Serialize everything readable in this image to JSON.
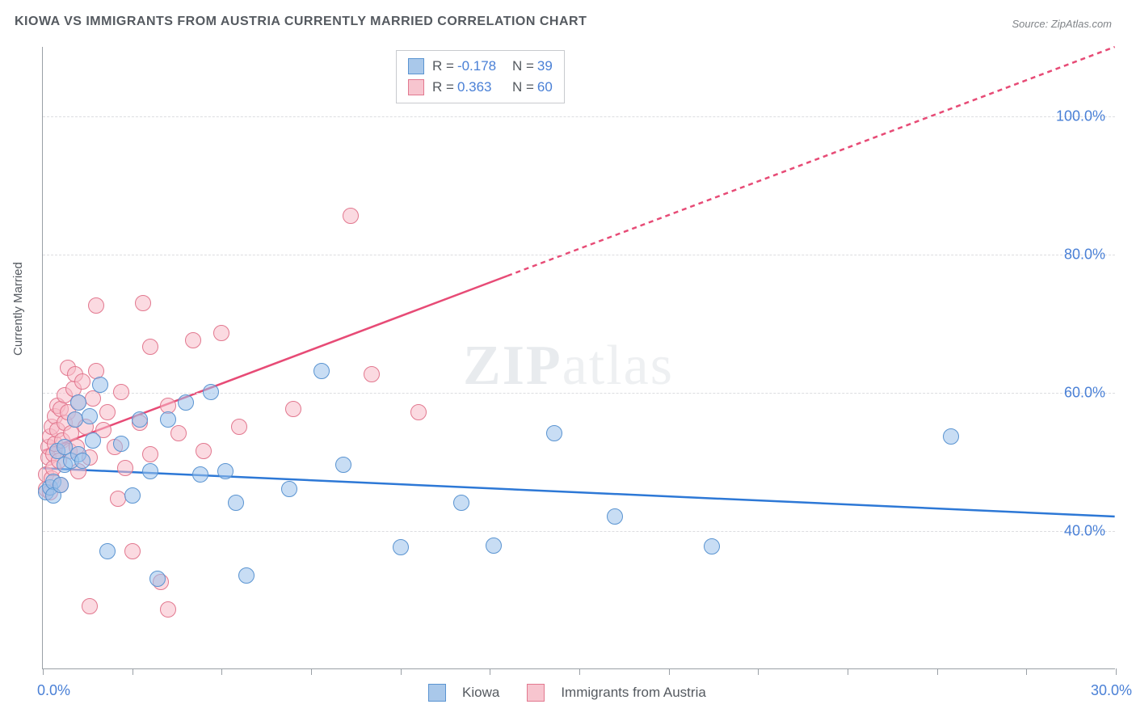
{
  "title": "KIOWA VS IMMIGRANTS FROM AUSTRIA CURRENTLY MARRIED CORRELATION CHART",
  "source": "Source: ZipAtlas.com",
  "y_axis_label": "Currently Married",
  "watermark_a": "ZIP",
  "watermark_b": "atlas",
  "chart": {
    "type": "scatter",
    "xlim": [
      0,
      30
    ],
    "ylim": [
      20,
      110
    ],
    "x_ticks": [
      0,
      2.5,
      5,
      7.5,
      10,
      12.5,
      15,
      17.5,
      20,
      22.5,
      25,
      27.5,
      30
    ],
    "y_gridlines": [
      40,
      60,
      80,
      100
    ],
    "y_tick_labels": [
      {
        "v": 40,
        "t": "40.0%"
      },
      {
        "v": 60,
        "t": "60.0%"
      },
      {
        "v": 80,
        "t": "80.0%"
      },
      {
        "v": 100,
        "t": "100.0%"
      }
    ],
    "x_tick_labels": [
      {
        "v": 0,
        "t": "0.0%"
      },
      {
        "v": 30,
        "t": "30.0%"
      }
    ],
    "background_color": "#ffffff",
    "grid_color": "#dcdde0",
    "axis_color": "#9aa0a6"
  },
  "series": [
    {
      "name": "Kiowa",
      "color_fill": "#a9c8ea",
      "color_stroke": "#5a94d1",
      "line_color": "#2d78d6",
      "R": "-0.178",
      "N": "39",
      "trend": {
        "x1": 0,
        "y1": 49.0,
        "x2": 30,
        "y2": 42.0
      },
      "points": [
        [
          0.1,
          45.5
        ],
        [
          0.2,
          46.2
        ],
        [
          0.3,
          47.0
        ],
        [
          0.3,
          45.0
        ],
        [
          0.4,
          51.5
        ],
        [
          0.5,
          46.5
        ],
        [
          0.6,
          49.5
        ],
        [
          0.6,
          52.0
        ],
        [
          0.8,
          50.0
        ],
        [
          0.9,
          56.0
        ],
        [
          1.0,
          51.0
        ],
        [
          1.0,
          58.5
        ],
        [
          1.1,
          50.0
        ],
        [
          1.3,
          56.5
        ],
        [
          1.4,
          53.0
        ],
        [
          1.6,
          61.0
        ],
        [
          1.8,
          37.0
        ],
        [
          2.2,
          52.5
        ],
        [
          2.5,
          45.0
        ],
        [
          2.7,
          56.0
        ],
        [
          3.0,
          48.5
        ],
        [
          3.2,
          33.0
        ],
        [
          3.5,
          56.0
        ],
        [
          4.0,
          58.5
        ],
        [
          4.4,
          48.0
        ],
        [
          4.7,
          60.0
        ],
        [
          5.1,
          48.5
        ],
        [
          5.4,
          44.0
        ],
        [
          5.7,
          33.5
        ],
        [
          6.9,
          46.0
        ],
        [
          7.8,
          63.0
        ],
        [
          8.4,
          49.5
        ],
        [
          10.0,
          37.5
        ],
        [
          11.7,
          44.0
        ],
        [
          12.6,
          37.8
        ],
        [
          14.3,
          54.0
        ],
        [
          16.0,
          42.0
        ],
        [
          18.7,
          37.7
        ],
        [
          25.4,
          53.5
        ]
      ]
    },
    {
      "name": "Immigrants from Austria",
      "color_fill": "#f7c5cf",
      "color_stroke": "#e2788f",
      "line_color": "#e74b76",
      "R": "0.363",
      "N": "60",
      "trend": {
        "x1": 0,
        "y1": 51.5,
        "x2": 30,
        "y2": 110.0
      },
      "trend_solid_until_x": 13.0,
      "points": [
        [
          0.1,
          46.0
        ],
        [
          0.1,
          48.0
        ],
        [
          0.15,
          50.5
        ],
        [
          0.15,
          52.0
        ],
        [
          0.2,
          45.5
        ],
        [
          0.2,
          53.5
        ],
        [
          0.25,
          55.0
        ],
        [
          0.25,
          47.5
        ],
        [
          0.3,
          51.0
        ],
        [
          0.3,
          49.0
        ],
        [
          0.35,
          56.5
        ],
        [
          0.35,
          52.5
        ],
        [
          0.4,
          54.5
        ],
        [
          0.4,
          58.0
        ],
        [
          0.45,
          50.0
        ],
        [
          0.5,
          57.5
        ],
        [
          0.5,
          46.5
        ],
        [
          0.55,
          53.0
        ],
        [
          0.6,
          55.5
        ],
        [
          0.6,
          59.5
        ],
        [
          0.7,
          57.0
        ],
        [
          0.7,
          63.5
        ],
        [
          0.75,
          51.5
        ],
        [
          0.8,
          54.0
        ],
        [
          0.85,
          60.5
        ],
        [
          0.9,
          56.0
        ],
        [
          0.9,
          62.5
        ],
        [
          0.95,
          52.0
        ],
        [
          1.0,
          58.5
        ],
        [
          1.0,
          48.5
        ],
        [
          1.1,
          61.5
        ],
        [
          1.2,
          55.0
        ],
        [
          1.3,
          50.5
        ],
        [
          1.3,
          29.0
        ],
        [
          1.4,
          59.0
        ],
        [
          1.5,
          63.0
        ],
        [
          1.5,
          72.5
        ],
        [
          1.7,
          54.5
        ],
        [
          1.8,
          57.0
        ],
        [
          2.0,
          52.0
        ],
        [
          2.1,
          44.5
        ],
        [
          2.2,
          60.0
        ],
        [
          2.3,
          49.0
        ],
        [
          2.5,
          37.0
        ],
        [
          2.7,
          55.5
        ],
        [
          2.8,
          72.8
        ],
        [
          3.0,
          51.0
        ],
        [
          3.0,
          66.5
        ],
        [
          3.3,
          32.5
        ],
        [
          3.5,
          58.0
        ],
        [
          3.5,
          28.5
        ],
        [
          3.8,
          54.0
        ],
        [
          4.2,
          67.5
        ],
        [
          4.5,
          51.5
        ],
        [
          5.0,
          68.5
        ],
        [
          5.5,
          55.0
        ],
        [
          7.0,
          57.5
        ],
        [
          8.6,
          85.5
        ],
        [
          9.2,
          62.5
        ],
        [
          10.5,
          57.0
        ]
      ]
    }
  ],
  "legend_top": {
    "rows": [
      {
        "sw_fill": "#a9c8ea",
        "sw_stroke": "#5a94d1",
        "R": "-0.178",
        "N": "39"
      },
      {
        "sw_fill": "#f7c5cf",
        "sw_stroke": "#e2788f",
        "R": "0.363",
        "N": "60"
      }
    ]
  },
  "legend_bottom": [
    {
      "sw_fill": "#a9c8ea",
      "sw_stroke": "#5a94d1",
      "label": "Kiowa"
    },
    {
      "sw_fill": "#f7c5cf",
      "sw_stroke": "#e2788f",
      "label": "Immigrants from Austria"
    }
  ]
}
